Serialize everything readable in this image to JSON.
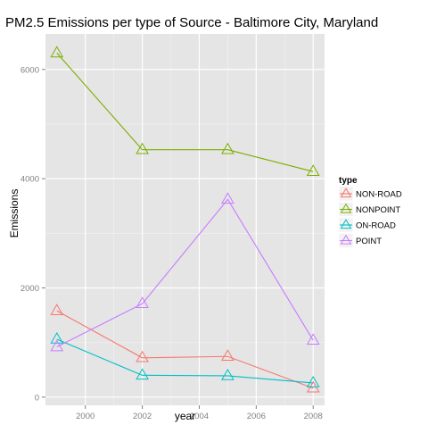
{
  "chart_data": {
    "type": "line",
    "title": "PM2.5 Emissions per type of Source - Baltimore City, Maryland",
    "xlabel": "year",
    "ylabel": "Emissions",
    "x": [
      1999,
      2002,
      2005,
      2008
    ],
    "xticks": [
      "2000",
      "2002",
      "2004",
      "2006",
      "2008"
    ],
    "yticks": [
      "0",
      "2000",
      "4000",
      "6000"
    ],
    "xlim": [
      1998.6,
      2008.4
    ],
    "ylim": [
      -150,
      6650
    ],
    "grid": true,
    "marker": "triangle-open",
    "legend": {
      "title": "type",
      "position": "right"
    },
    "series": [
      {
        "name": "NON-ROAD",
        "color": "#F8766D",
        "values": [
          1580,
          720,
          745,
          165
        ]
      },
      {
        "name": "NONPOINT",
        "color": "#7CAE00",
        "values": [
          6300,
          4530,
          4530,
          4130
        ]
      },
      {
        "name": "ON-ROAD",
        "color": "#00BFC4",
        "values": [
          1060,
          400,
          390,
          260
        ]
      },
      {
        "name": "POINT",
        "color": "#C77CFF",
        "values": [
          920,
          1710,
          3620,
          1040
        ]
      }
    ]
  }
}
